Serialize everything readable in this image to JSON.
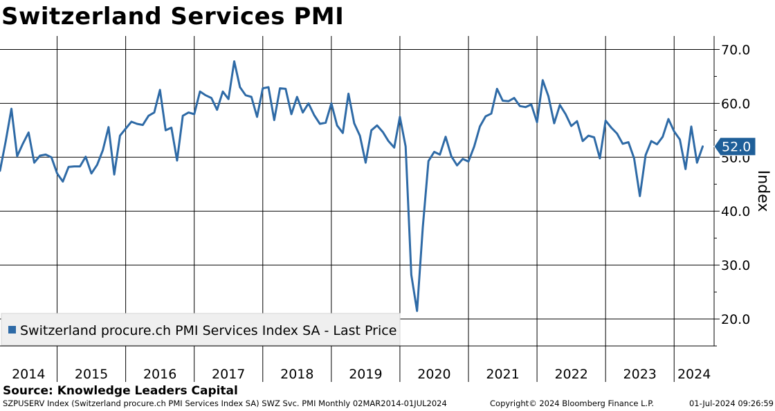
{
  "title": "Switzerland Services PMI",
  "source": "Source: Knowledge Leaders Capital",
  "footer": {
    "left": "SZPUSERV Index (Switzerland procure.ch PMI Services Index SA) SWZ Svc. PMI  Monthly 02MAR2014-01JUL2024",
    "copyright": "Copyright© 2024 Bloomberg Finance L.P.",
    "timestamp": "01-Jul-2024 09:26:59"
  },
  "chart_data": {
    "type": "line",
    "ylabel": "Index",
    "ylim": [
      15,
      72.5
    ],
    "yticks": [
      20,
      30,
      40,
      50,
      60,
      70
    ],
    "ytick_labels": [
      "20.0",
      "30.0",
      "40.0",
      "50.0",
      "60.0",
      "70.0"
    ],
    "xlim": [
      2014.167,
      2024.583
    ],
    "year_labels": [
      "2014",
      "2015",
      "2016",
      "2017",
      "2018",
      "2019",
      "2020",
      "2021",
      "2022",
      "2023",
      "2024"
    ],
    "year_boundaries": [
      2015,
      2016,
      2017,
      2018,
      2019,
      2020,
      2021,
      2022,
      2023,
      2024
    ],
    "legend": "Switzerland procure.ch PMI Services Index SA - Last Price",
    "last_value_label": "52.0",
    "color": "#2e6aa6",
    "series": [
      {
        "name": "Switzerland procure.ch PMI Services Index SA - Last Price",
        "start": 2014.167,
        "step": 0.08333,
        "values": [
          47.5,
          53.0,
          59.0,
          50.2,
          52.5,
          54.6,
          49.0,
          50.3,
          50.5,
          50.0,
          47.0,
          45.5,
          48.2,
          48.3,
          48.3,
          50.1,
          47.0,
          48.6,
          51.3,
          55.6,
          46.8,
          54.0,
          55.3,
          56.6,
          56.2,
          56.0,
          57.7,
          58.3,
          62.5,
          55.0,
          55.5,
          49.4,
          57.7,
          58.3,
          58.0,
          62.2,
          61.5,
          61.0,
          58.8,
          62.2,
          60.8,
          67.8,
          63.0,
          61.5,
          61.2,
          57.5,
          62.8,
          63.0,
          56.9,
          62.8,
          62.7,
          58.0,
          61.2,
          58.3,
          60.0,
          57.8,
          56.2,
          56.4,
          60.0,
          55.9,
          54.5,
          61.8,
          56.3,
          54.0,
          49.0,
          55.0,
          55.9,
          54.7,
          53.0,
          51.8,
          57.5,
          52.0,
          28.2,
          21.5,
          37.0,
          49.3,
          51.0,
          50.5,
          53.8,
          50.2,
          48.5,
          49.7,
          49.2,
          52.0,
          55.7,
          57.6,
          58.1,
          62.7,
          60.5,
          60.4,
          61.0,
          59.5,
          59.3,
          59.8,
          56.5,
          64.3,
          61.3,
          56.3,
          59.7,
          58.0,
          55.8,
          56.7,
          53.0,
          54.0,
          53.7,
          49.8,
          56.8,
          55.5,
          54.4,
          52.5,
          52.8,
          49.8,
          42.8,
          50.4,
          53.0,
          52.4,
          53.8,
          57.1,
          54.8,
          53.3,
          47.8,
          55.7,
          49.0,
          52.0
        ]
      }
    ]
  }
}
